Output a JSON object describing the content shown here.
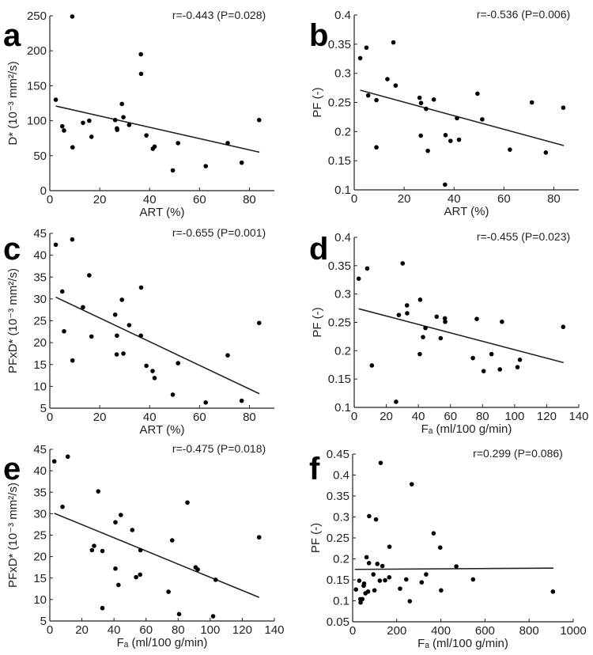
{
  "chart_data": [
    {
      "panel": "a",
      "type": "scatter",
      "annotation": "r=-0.443 (P=0.028)",
      "xlabel": "ART (%)",
      "ylabel": "D* (10⁻³ mm²/s)",
      "xlim": [
        0,
        90
      ],
      "ylim": [
        0,
        250
      ],
      "xticks": [
        0,
        20,
        40,
        60,
        80
      ],
      "yticks": [
        0,
        50,
        100,
        150,
        200,
        250
      ],
      "points": [
        [
          2.4,
          130
        ],
        [
          9.0,
          249
        ],
        [
          5.0,
          92
        ],
        [
          5.7,
          86
        ],
        [
          9.1,
          62
        ],
        [
          13.3,
          97
        ],
        [
          15.8,
          100
        ],
        [
          16.7,
          77
        ],
        [
          26.2,
          101
        ],
        [
          26.9,
          89
        ],
        [
          27.0,
          87
        ],
        [
          28.9,
          124
        ],
        [
          29.5,
          105
        ],
        [
          31.8,
          94
        ],
        [
          36.5,
          195
        ],
        [
          36.6,
          167
        ],
        [
          38.7,
          79
        ],
        [
          41.3,
          60
        ],
        [
          42.0,
          63
        ],
        [
          49.3,
          29
        ],
        [
          51.4,
          68
        ],
        [
          62.5,
          35
        ],
        [
          71.3,
          68
        ],
        [
          76.9,
          40
        ],
        [
          83.9,
          101
        ]
      ],
      "fit_line": [
        [
          2.4,
          121
        ],
        [
          84,
          55
        ]
      ]
    },
    {
      "panel": "b",
      "type": "scatter",
      "annotation": "r=-0.536 (P=0.006)",
      "xlabel": "ART (%)",
      "ylabel": "PF (-)",
      "xlim": [
        0,
        90
      ],
      "ylim": [
        0.1,
        0.4
      ],
      "xticks": [
        0,
        20,
        40,
        60,
        80
      ],
      "yticks": [
        0.1,
        0.15,
        0.2,
        0.25,
        0.3,
        0.35,
        0.4
      ],
      "points": [
        [
          2.4,
          0.326
        ],
        [
          4.9,
          0.344
        ],
        [
          5.6,
          0.262
        ],
        [
          8.9,
          0.254
        ],
        [
          8.9,
          0.173
        ],
        [
          13.3,
          0.29
        ],
        [
          15.7,
          0.353
        ],
        [
          16.6,
          0.279
        ],
        [
          26.2,
          0.258
        ],
        [
          26.8,
          0.249
        ],
        [
          26.7,
          0.193
        ],
        [
          28.8,
          0.239
        ],
        [
          29.5,
          0.167
        ],
        [
          31.9,
          0.255
        ],
        [
          36.6,
          0.194
        ],
        [
          36.4,
          0.109
        ],
        [
          38.6,
          0.184
        ],
        [
          41.2,
          0.223
        ],
        [
          42.0,
          0.186
        ],
        [
          49.4,
          0.265
        ],
        [
          51.3,
          0.221
        ],
        [
          62.4,
          0.169
        ],
        [
          71.2,
          0.25
        ],
        [
          76.8,
          0.164
        ],
        [
          83.8,
          0.241
        ]
      ],
      "fit_line": [
        [
          2.4,
          0.271
        ],
        [
          84,
          0.176
        ]
      ]
    },
    {
      "panel": "c",
      "type": "scatter",
      "annotation": "r=-0.655 (P=0.001)",
      "xlabel": "ART (%)",
      "ylabel": "PFxD* (10⁻³ mm²/s)",
      "xlim": [
        0,
        90
      ],
      "ylim": [
        5,
        45
      ],
      "xticks": [
        0,
        20,
        40,
        60,
        80
      ],
      "yticks": [
        5,
        10,
        15,
        20,
        25,
        30,
        35,
        40,
        45
      ],
      "points": [
        [
          2.4,
          42.4
        ],
        [
          9.0,
          43.6
        ],
        [
          5.0,
          31.7
        ],
        [
          5.7,
          22.6
        ],
        [
          9.1,
          15.9
        ],
        [
          13.3,
          28.1
        ],
        [
          15.8,
          35.4
        ],
        [
          16.7,
          21.4
        ],
        [
          26.2,
          26.4
        ],
        [
          26.9,
          21.6
        ],
        [
          26.8,
          17.3
        ],
        [
          28.9,
          29.8
        ],
        [
          29.5,
          17.5
        ],
        [
          31.8,
          24.0
        ],
        [
          36.5,
          21.6
        ],
        [
          36.6,
          32.6
        ],
        [
          38.7,
          14.7
        ],
        [
          41.2,
          13.5
        ],
        [
          42.0,
          11.9
        ],
        [
          49.3,
          8.1
        ],
        [
          51.4,
          15.3
        ],
        [
          62.5,
          6.3
        ],
        [
          71.3,
          17.1
        ],
        [
          76.9,
          6.7
        ],
        [
          83.9,
          24.5
        ]
      ],
      "fit_line": [
        [
          2.4,
          30.4
        ],
        [
          84,
          8.3
        ]
      ]
    },
    {
      "panel": "d",
      "type": "scatter",
      "annotation": "r=-0.455 (P=0.023)",
      "xlabel": "Fₐ (ml/100 g/min)",
      "ylabel": "PF (-)",
      "xlim": [
        0,
        140
      ],
      "ylim": [
        0.1,
        0.4
      ],
      "xticks": [
        0,
        20,
        40,
        60,
        80,
        100,
        120,
        140
      ],
      "yticks": [
        0.1,
        0.15,
        0.2,
        0.25,
        0.3,
        0.35,
        0.4
      ],
      "points": [
        [
          2.8,
          0.327
        ],
        [
          8.1,
          0.345
        ],
        [
          11.0,
          0.174
        ],
        [
          26.1,
          0.11
        ],
        [
          27.8,
          0.263
        ],
        [
          30.2,
          0.354
        ],
        [
          32.9,
          0.28
        ],
        [
          33.0,
          0.266
        ],
        [
          41.1,
          0.29
        ],
        [
          40.9,
          0.194
        ],
        [
          42.9,
          0.224
        ],
        [
          44.4,
          0.24
        ],
        [
          51.4,
          0.26
        ],
        [
          53.9,
          0.222
        ],
        [
          56.5,
          0.257
        ],
        [
          56.7,
          0.251
        ],
        [
          74.0,
          0.187
        ],
        [
          76.4,
          0.256
        ],
        [
          80.7,
          0.164
        ],
        [
          85.6,
          0.194
        ],
        [
          90.8,
          0.167
        ],
        [
          92.1,
          0.251
        ],
        [
          101.8,
          0.171
        ],
        [
          103.3,
          0.184
        ],
        [
          130.3,
          0.242
        ]
      ],
      "fit_line": [
        [
          2.8,
          0.274
        ],
        [
          130.5,
          0.179
        ]
      ]
    },
    {
      "panel": "e",
      "type": "scatter",
      "annotation": "r=-0.475 (P=0.018)",
      "xlabel": "Fₐ (ml/100 g/min)",
      "ylabel": "PFxD* (10⁻³ mm²/s)",
      "xlim": [
        0,
        140
      ],
      "ylim": [
        5,
        45
      ],
      "xticks": [
        0,
        20,
        40,
        60,
        80,
        100,
        120,
        140
      ],
      "yticks": [
        5,
        10,
        15,
        20,
        25,
        30,
        35,
        40,
        45
      ],
      "points": [
        [
          2.8,
          42.2
        ],
        [
          11.2,
          43.3
        ],
        [
          7.9,
          31.6
        ],
        [
          30.2,
          35.2
        ],
        [
          26.3,
          21.5
        ],
        [
          27.6,
          22.5
        ],
        [
          32.8,
          21.3
        ],
        [
          32.8,
          8.0
        ],
        [
          40.9,
          28.0
        ],
        [
          40.9,
          17.2
        ],
        [
          42.8,
          13.4
        ],
        [
          44.3,
          29.7
        ],
        [
          51.4,
          26.2
        ],
        [
          53.8,
          15.2
        ],
        [
          56.3,
          15.8
        ],
        [
          56.5,
          21.5
        ],
        [
          74.0,
          11.8
        ],
        [
          76.3,
          23.8
        ],
        [
          80.6,
          6.6
        ],
        [
          85.8,
          32.6
        ],
        [
          90.9,
          17.5
        ],
        [
          92.2,
          17.0
        ],
        [
          101.8,
          6.1
        ],
        [
          103.4,
          14.6
        ],
        [
          130.5,
          24.5
        ]
      ],
      "fit_line": [
        [
          2.8,
          30.1
        ],
        [
          130.5,
          10.5
        ]
      ]
    },
    {
      "panel": "f",
      "type": "scatter",
      "annotation": "r=0.299 (P=0.086)",
      "xlabel": "Fₐ (ml/100 g/min)",
      "ylabel": "PF (-)",
      "xlim": [
        0,
        1000
      ],
      "ylim": [
        0.05,
        0.45
      ],
      "xticks": [
        0,
        200,
        400,
        600,
        800,
        1000
      ],
      "yticks": [
        0.05,
        0.1,
        0.15,
        0.2,
        0.25,
        0.3,
        0.35,
        0.4,
        0.45
      ],
      "points": [
        [
          15,
          0.127
        ],
        [
          30,
          0.148
        ],
        [
          35,
          0.104
        ],
        [
          36,
          0.096
        ],
        [
          44,
          0.104
        ],
        [
          50,
          0.136
        ],
        [
          52,
          0.141
        ],
        [
          58,
          0.118
        ],
        [
          63,
          0.204
        ],
        [
          70,
          0.122
        ],
        [
          74,
          0.19
        ],
        [
          75,
          0.302
        ],
        [
          94,
          0.163
        ],
        [
          99,
          0.125
        ],
        [
          106,
          0.294
        ],
        [
          112,
          0.188
        ],
        [
          123,
          0.148
        ],
        [
          127,
          0.429
        ],
        [
          135,
          0.183
        ],
        [
          147,
          0.149
        ],
        [
          166,
          0.156
        ],
        [
          167,
          0.229
        ],
        [
          215,
          0.129
        ],
        [
          243,
          0.151
        ],
        [
          259,
          0.099
        ],
        [
          268,
          0.378
        ],
        [
          313,
          0.144
        ],
        [
          333,
          0.163
        ],
        [
          367,
          0.261
        ],
        [
          397,
          0.227
        ],
        [
          401,
          0.125
        ],
        [
          470,
          0.182
        ],
        [
          546,
          0.151
        ],
        [
          908,
          0.122
        ]
      ],
      "fit_line": [
        [
          10,
          0.175
        ],
        [
          910,
          0.178
        ]
      ]
    }
  ]
}
